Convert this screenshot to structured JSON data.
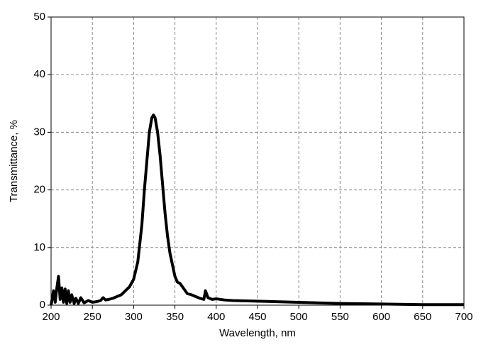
{
  "chart_data": {
    "type": "line",
    "xlabel": "Wavelength, nm",
    "ylabel": "Transmittance, %",
    "x": [
      200,
      203,
      205,
      207,
      209,
      211,
      213,
      215,
      217,
      219,
      221,
      223,
      225,
      228,
      230,
      233,
      236,
      240,
      245,
      250,
      255,
      260,
      263,
      266,
      270,
      275,
      280,
      285,
      290,
      295,
      300,
      305,
      310,
      313,
      316,
      319,
      322,
      324,
      326,
      329,
      332,
      335,
      338,
      341,
      344,
      347,
      350,
      353,
      356,
      360,
      365,
      370,
      375,
      380,
      385,
      387,
      390,
      395,
      400,
      410,
      420,
      450,
      500,
      550,
      600,
      650,
      700
    ],
    "series": [
      {
        "name": "Transmittance",
        "color": "#000000",
        "values": [
          0,
          2.5,
          0.5,
          3,
          5,
          1,
          3,
          0.5,
          2.8,
          0.3,
          2.5,
          0.5,
          1.8,
          0.3,
          1.2,
          0.3,
          1.3,
          0.4,
          0.8,
          0.5,
          0.6,
          0.8,
          1.3,
          0.9,
          1,
          1.2,
          1.5,
          1.8,
          2.5,
          3.2,
          4.5,
          7.5,
          14,
          20,
          25,
          30,
          32.5,
          33,
          32.5,
          30,
          26,
          21,
          16,
          12,
          9,
          7,
          5,
          4,
          3.8,
          3,
          2,
          1.8,
          1.5,
          1.2,
          1,
          2.5,
          1.3,
          1,
          1.1,
          0.9,
          0.8,
          0.7,
          0.5,
          0.3,
          0.2,
          0.1,
          0.1
        ]
      }
    ],
    "xlim": [
      200,
      700
    ],
    "xticks": [
      200,
      250,
      300,
      350,
      400,
      450,
      500,
      550,
      600,
      650,
      700
    ],
    "ylim": [
      0,
      50
    ],
    "yticks": [
      0,
      10,
      20,
      30,
      40,
      50
    ],
    "grid": true
  }
}
